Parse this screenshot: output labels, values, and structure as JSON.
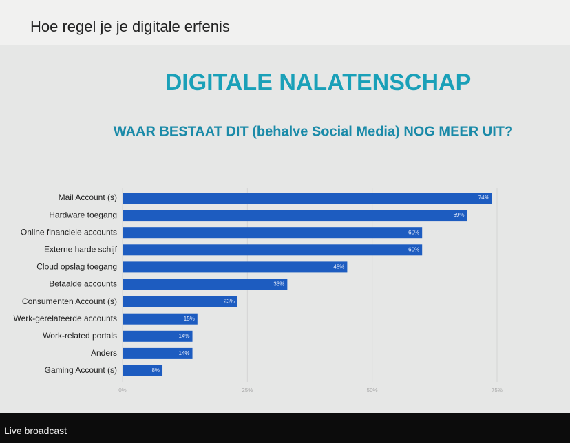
{
  "header": {
    "title": "Hoe regel je je digitale erfenis"
  },
  "chart_data": {
    "type": "bar",
    "orientation": "horizontal",
    "title": "DIGITALE  NALATENSCHAP",
    "subtitle": "WAAR BESTAAT DIT (behalve Social Media) NOG MEER UIT?",
    "categories": [
      "Mail Account (s)",
      "Hardware toegang",
      "Online financiele accounts",
      "Externe harde schijf",
      "Cloud opslag toegang",
      "Betaalde accounts",
      "Consumenten Account (s)",
      "Werk-gerelateerde accounts",
      "Work-related portals",
      "Anders",
      "Gaming Account (s)"
    ],
    "values": [
      74,
      69,
      60,
      60,
      45,
      33,
      23,
      15,
      14,
      14,
      8
    ],
    "value_labels": [
      "74%",
      "69%",
      "60%",
      "60%",
      "45%",
      "33%",
      "23%",
      "15%",
      "14%",
      "14%",
      "8%"
    ],
    "color": "#1d5cc0",
    "xlim": [
      0,
      75
    ],
    "xticks": [
      {
        "value": 0,
        "label": "0%"
      },
      {
        "value": 25,
        "label": "25%"
      },
      {
        "value": 50,
        "label": "50%"
      },
      {
        "value": 75,
        "label": "75%"
      }
    ],
    "grid": true
  },
  "footer": {
    "label": "Live broadcast"
  }
}
